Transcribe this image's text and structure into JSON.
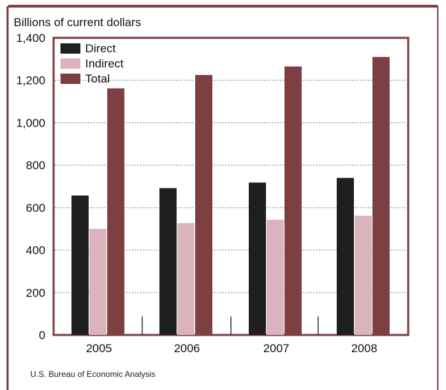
{
  "chart_data": {
    "type": "bar",
    "ylabel": "Billions of current dollars",
    "categories": [
      "2005",
      "2006",
      "2007",
      "2008"
    ],
    "series": [
      {
        "name": "Direct",
        "values": [
          657,
          692,
          718,
          740
        ]
      },
      {
        "name": "Indirect",
        "values": [
          500,
          527,
          543,
          562
        ]
      },
      {
        "name": "Total",
        "values": [
          1162,
          1225,
          1265,
          1310
        ]
      }
    ],
    "ylim": [
      0,
      1400
    ],
    "yticks": [
      "0",
      "200",
      "400",
      "600",
      "800",
      "1,000",
      "1,200",
      "1,400"
    ],
    "grid": "horizontal dotted",
    "legend_position": "top-left",
    "colors": {
      "Direct": "#1e1f21",
      "Indirect": "#dab4bd",
      "Total": "#7d3f42",
      "frame": "#7b4043",
      "grid": "#555555"
    }
  },
  "source": "U.S. Bureau of Economic Analysis"
}
